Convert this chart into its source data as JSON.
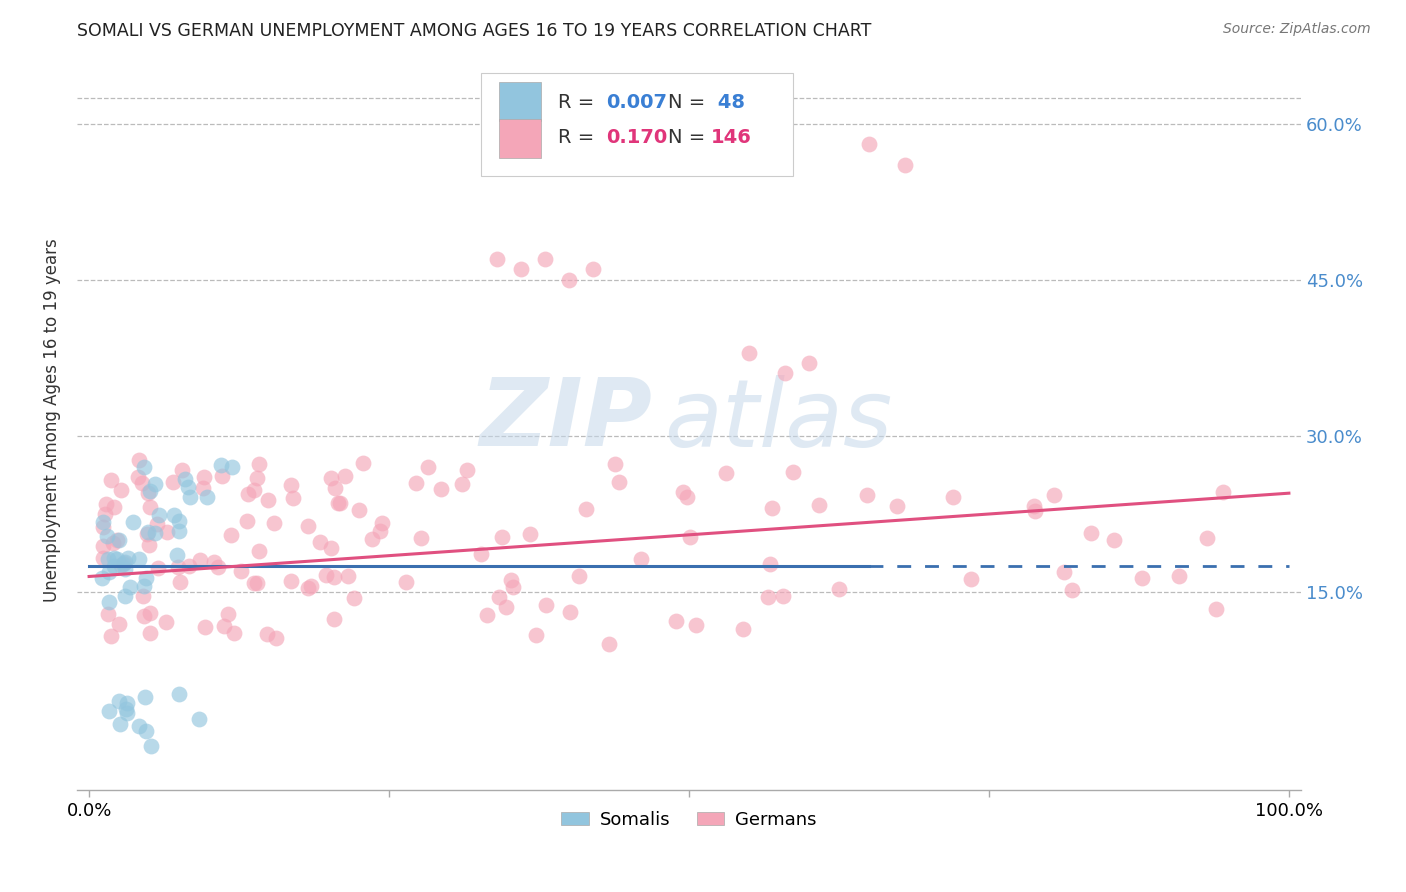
{
  "title": "SOMALI VS GERMAN UNEMPLOYMENT AMONG AGES 16 TO 19 YEARS CORRELATION CHART",
  "source": "Source: ZipAtlas.com",
  "ylabel": "Unemployment Among Ages 16 to 19 years",
  "xlim": [
    -0.01,
    1.01
  ],
  "ylim": [
    -0.04,
    0.67
  ],
  "yticks": [
    0.15,
    0.3,
    0.45,
    0.6
  ],
  "right_ytick_labels": [
    "15.0%",
    "30.0%",
    "45.0%",
    "60.0%"
  ],
  "xtick_left": "0.0%",
  "xtick_right": "100.0%",
  "somali_R": "0.007",
  "somali_N": "48",
  "german_R": "0.170",
  "german_N": "146",
  "somali_color": "#92c5de",
  "german_color": "#f4a6b8",
  "somali_line_color": "#3a6faf",
  "german_line_color": "#e05080",
  "watermark_zip": "ZIP",
  "watermark_atlas": "atlas",
  "background_color": "#ffffff",
  "somali_line_x0": 0.0,
  "somali_line_x1": 0.65,
  "somali_line_x2": 1.0,
  "somali_line_y": 0.175,
  "german_line_x0": 0.0,
  "german_line_x1": 1.0,
  "german_line_y0": 0.165,
  "german_line_y1": 0.245
}
